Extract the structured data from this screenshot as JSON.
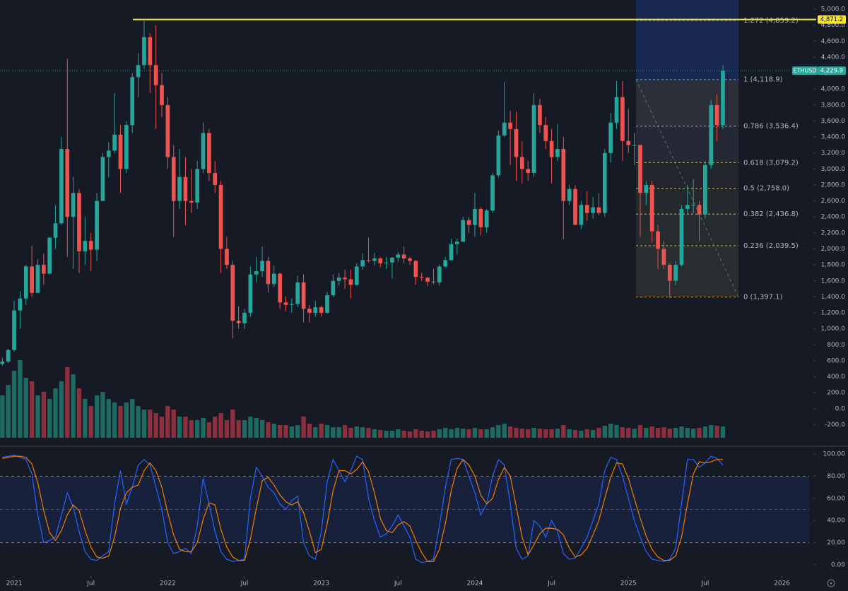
{
  "chart_data": {
    "type": "candlestick",
    "symbol": "ETHUSD",
    "last_price": {
      "value": 4229.9,
      "label": "4,229.9"
    },
    "up_color": "#26a69a",
    "down_color": "#ef5350",
    "xlim": [
      -0.4,
      136.6
    ],
    "xticks": [
      {
        "value": 2,
        "label": "2021"
      },
      {
        "value": 15,
        "label": "Jul"
      },
      {
        "value": 28,
        "label": "2022"
      },
      {
        "value": 41,
        "label": "Jul"
      },
      {
        "value": 54,
        "label": "2023"
      },
      {
        "value": 67,
        "label": "Jul"
      },
      {
        "value": 80,
        "label": "2024"
      },
      {
        "value": 93,
        "label": "Jul"
      },
      {
        "value": 106,
        "label": "2025"
      },
      {
        "value": 119,
        "label": "Jul"
      },
      {
        "value": 132,
        "label": "2026"
      }
    ],
    "ylim": [
      -470,
      5115
    ],
    "yticks": [
      {
        "value": 5000,
        "label": "5,000.0"
      },
      {
        "value": 4800,
        "label": "4,800.0"
      },
      {
        "value": 4600,
        "label": "4,600.0"
      },
      {
        "value": 4400,
        "label": "4,400.0"
      },
      {
        "value": 4200,
        "label": "4,200.0"
      },
      {
        "value": 4000,
        "label": "4,000.0"
      },
      {
        "value": 3800,
        "label": "3,800.0"
      },
      {
        "value": 3600,
        "label": "3,600.0"
      },
      {
        "value": 3400,
        "label": "3,400.0"
      },
      {
        "value": 3200,
        "label": "3,200.0"
      },
      {
        "value": 3000,
        "label": "3,000.0"
      },
      {
        "value": 2800,
        "label": "2,800.0"
      },
      {
        "value": 2600,
        "label": "2,600.0"
      },
      {
        "value": 2400,
        "label": "2,400.0"
      },
      {
        "value": 2200,
        "label": "2,200.0"
      },
      {
        "value": 2000,
        "label": "2,000.0"
      },
      {
        "value": 1800,
        "label": "1,800.0"
      },
      {
        "value": 1600,
        "label": "1,600.0"
      },
      {
        "value": 1400,
        "label": "1,400.0"
      },
      {
        "value": 1200,
        "label": "1,200.0"
      },
      {
        "value": 1000,
        "label": "1,000.0"
      },
      {
        "value": 800,
        "label": "800.0"
      },
      {
        "value": 600,
        "label": "600.0"
      },
      {
        "value": 400,
        "label": "400.0"
      },
      {
        "value": 200,
        "label": "200.0"
      },
      {
        "value": 0,
        "label": "0.0"
      },
      {
        "value": -200,
        "label": "-200.0"
      }
    ],
    "open": [
      560,
      590,
      735,
      1230,
      1380,
      1780,
      1450,
      1800,
      1690,
      2140,
      2320,
      3250,
      2400,
      2700,
      1970,
      2100,
      1990,
      2600,
      3150,
      3230,
      3430,
      3000,
      3550,
      4150,
      4300,
      4650,
      4300,
      4050,
      3800,
      3150,
      2600,
      2900,
      2600,
      2580,
      3000,
      3450,
      2950,
      2800,
      2000,
      1800,
      1100,
      1070,
      1200,
      1680,
      1720,
      1850,
      1560,
      1690,
      1330,
      1300,
      1310,
      1580,
      1250,
      1200,
      1270,
      1200,
      1420,
      1600,
      1640,
      1620,
      1550,
      1780,
      1860,
      1850,
      1880,
      1820,
      1830,
      1890,
      1930,
      1880,
      1850,
      1650,
      1640,
      1590,
      1580,
      1780,
      1860,
      2060,
      2090,
      2360,
      2300,
      2500,
      2270,
      2480,
      2920,
      3420,
      3580,
      3500,
      3150,
      3000,
      2950,
      3800,
      3550,
      3350,
      3150,
      3250,
      2600,
      2750,
      2300,
      2550,
      2450,
      2520,
      2450,
      3200,
      3580,
      3900,
      3350,
      3300,
      3300,
      2700,
      2800,
      2220,
      2000,
      1800,
      1600,
      1800,
      2500,
      2550,
      2550,
      2430,
      3050,
      3800,
      3550
    ],
    "high": [
      640,
      750,
      1350,
      1470,
      1800,
      2040,
      1870,
      1940,
      2150,
      2550,
      3400,
      4380,
      2900,
      2750,
      2400,
      2200,
      2700,
      3200,
      3330,
      3950,
      3550,
      3600,
      4200,
      4450,
      4870,
      4700,
      4800,
      4200,
      3900,
      3300,
      3250,
      3150,
      3000,
      3100,
      3580,
      3500,
      3100,
      2850,
      2150,
      1850,
      1280,
      1250,
      1780,
      1900,
      2030,
      1900,
      1790,
      1700,
      1400,
      1380,
      1660,
      1680,
      1300,
      1350,
      1290,
      1460,
      1680,
      1700,
      1740,
      1740,
      1820,
      1940,
      2140,
      1950,
      1900,
      1900,
      1900,
      1960,
      2030,
      1900,
      1860,
      1700,
      1650,
      1750,
      1800,
      1900,
      2130,
      2130,
      2400,
      2400,
      2700,
      2520,
      2500,
      2950,
      3480,
      4090,
      3730,
      3720,
      3350,
      3100,
      3950,
      3880,
      3650,
      3500,
      3560,
      3400,
      2800,
      2800,
      2600,
      2720,
      2650,
      2700,
      3250,
      3700,
      4100,
      4100,
      3750,
      3450,
      3300,
      2850,
      2850,
      2300,
      2100,
      1820,
      1850,
      2550,
      2800,
      2880,
      2600,
      3100,
      3860,
      3940,
      4300
    ],
    "low": [
      540,
      570,
      715,
      1000,
      1300,
      1400,
      1450,
      1550,
      1690,
      2000,
      2300,
      1900,
      1750,
      1700,
      1800,
      1720,
      1850,
      2600,
      2900,
      3200,
      2700,
      2950,
      3450,
      3900,
      4250,
      3950,
      3500,
      3650,
      3000,
      2150,
      2500,
      2300,
      2450,
      2500,
      2950,
      2850,
      2700,
      1700,
      1750,
      880,
      1000,
      1000,
      1150,
      1580,
      1650,
      1450,
      1520,
      1250,
      1220,
      1200,
      1270,
      1080,
      1080,
      1150,
      1150,
      1190,
      1400,
      1540,
      1500,
      1380,
      1540,
      1740,
      1830,
      1790,
      1770,
      1750,
      1630,
      1840,
      1820,
      1800,
      1550,
      1600,
      1530,
      1560,
      1540,
      1760,
      1850,
      1930,
      2090,
      2200,
      2150,
      2170,
      2200,
      2450,
      2900,
      3400,
      3050,
      2850,
      2820,
      2850,
      2900,
      3450,
      3250,
      2820,
      3100,
      2120,
      2550,
      2300,
      2250,
      2350,
      2380,
      2420,
      2400,
      3080,
      3500,
      3100,
      3200,
      3050,
      2150,
      2550,
      2080,
      1750,
      1750,
      1385,
      1550,
      1780,
      2450,
      2450,
      2100,
      2380,
      3000,
      3350,
      3500
    ],
    "close": [
      590,
      735,
      1230,
      1380,
      1780,
      1450,
      1800,
      1690,
      2140,
      2320,
      3250,
      2400,
      2700,
      1970,
      2100,
      1990,
      2600,
      3150,
      3230,
      3430,
      3000,
      3550,
      4150,
      4300,
      4650,
      4300,
      4050,
      3800,
      3150,
      2600,
      2900,
      2600,
      2580,
      3000,
      3450,
      2950,
      2800,
      2000,
      1800,
      1100,
      1070,
      1200,
      1680,
      1720,
      1850,
      1560,
      1690,
      1330,
      1300,
      1310,
      1580,
      1250,
      1200,
      1270,
      1200,
      1420,
      1600,
      1640,
      1620,
      1550,
      1780,
      1860,
      1850,
      1880,
      1820,
      1830,
      1890,
      1930,
      1880,
      1850,
      1650,
      1640,
      1590,
      1580,
      1780,
      1860,
      2060,
      2090,
      2360,
      2300,
      2500,
      2270,
      2480,
      2920,
      3420,
      3580,
      3500,
      3150,
      3000,
      2950,
      3800,
      3550,
      3350,
      3150,
      3250,
      2600,
      2750,
      2300,
      2550,
      2450,
      2520,
      2450,
      3200,
      3580,
      3900,
      3350,
      3300,
      3300,
      2700,
      2800,
      2220,
      2000,
      1800,
      1600,
      1800,
      2500,
      2550,
      2550,
      2430,
      3050,
      3800,
      3550,
      4229.9
    ],
    "volume": {
      "ylim": [
        0,
        120
      ],
      "up_color": "#1d6a62",
      "down_color": "#8c2f3f",
      "values": [
        60,
        75,
        95,
        110,
        85,
        80,
        60,
        65,
        55,
        70,
        80,
        100,
        90,
        70,
        55,
        45,
        60,
        65,
        55,
        50,
        45,
        50,
        55,
        45,
        40,
        40,
        35,
        30,
        45,
        40,
        30,
        30,
        25,
        25,
        28,
        22,
        30,
        35,
        25,
        40,
        25,
        25,
        30,
        28,
        25,
        22,
        20,
        18,
        18,
        16,
        18,
        30,
        20,
        15,
        20,
        18,
        15,
        15,
        18,
        14,
        16,
        15,
        14,
        12,
        11,
        10,
        10,
        12,
        10,
        9,
        12,
        10,
        9,
        10,
        12,
        14,
        12,
        14,
        13,
        12,
        14,
        12,
        12,
        15,
        18,
        20,
        16,
        14,
        13,
        12,
        14,
        13,
        12,
        12,
        13,
        18,
        12,
        11,
        10,
        12,
        11,
        14,
        17,
        20,
        18,
        15,
        14,
        13,
        18,
        14,
        16,
        14,
        15,
        13,
        14,
        16,
        14,
        13,
        14,
        16,
        18,
        17,
        16
      ]
    },
    "horizontal_line": {
      "value": 4871.2,
      "label": "4,871.2",
      "color": "#f5e13a"
    },
    "fibonacci": {
      "levels": [
        {
          "value": 4859.2,
          "label": "1.272 (4,859.2)",
          "color": "#7aa6e8"
        },
        {
          "value": 4118.9,
          "label": "1 (4,118.9)",
          "color": "#7aa6e8"
        },
        {
          "value": 3536.4,
          "label": "0.786 (3,536.4)",
          "color": "#d1d4dc"
        },
        {
          "value": 3079.2,
          "label": "0.618 (3,079.2)",
          "color": "#f3e58a"
        },
        {
          "value": 2758.0,
          "label": "0.5 (2,758.0)",
          "color": "#f3e58a"
        },
        {
          "value": 2436.8,
          "label": "0.382 (2,436.8)",
          "color": "#f3e58a"
        },
        {
          "value": 2039.5,
          "label": "0.236 (2,039.5)",
          "color": "#f3e58a"
        },
        {
          "value": 1397.1,
          "label": "0 (1,397.1)",
          "color": "#e8a33c"
        }
      ]
    },
    "stochastic": {
      "ylim": [
        -9.6,
        107
      ],
      "yticks": [
        {
          "value": 100,
          "label": "100.00"
        },
        {
          "value": 80,
          "label": "80.00"
        },
        {
          "value": 60,
          "label": "60.00"
        },
        {
          "value": 40,
          "label": "40.00"
        },
        {
          "value": 20,
          "label": "20.00"
        },
        {
          "value": 0,
          "label": "0.00"
        }
      ],
      "band": [
        20,
        80
      ],
      "midline": 50,
      "series": [
        {
          "color": "#2962ff",
          "values": [
            97,
            98,
            99,
            97,
            95,
            82,
            45,
            20,
            22,
            25,
            45,
            65,
            52,
            30,
            12,
            5,
            4,
            8,
            12,
            55,
            85,
            55,
            70,
            90,
            95,
            90,
            70,
            50,
            20,
            10,
            12,
            15,
            10,
            35,
            78,
            55,
            30,
            12,
            5,
            3,
            4,
            5,
            60,
            88,
            80,
            70,
            65,
            55,
            50,
            58,
            62,
            20,
            8,
            5,
            30,
            75,
            95,
            85,
            75,
            85,
            98,
            95,
            60,
            40,
            25,
            28,
            35,
            45,
            35,
            25,
            5,
            2,
            3,
            5,
            35,
            70,
            95,
            96,
            95,
            80,
            65,
            45,
            55,
            80,
            95,
            90,
            55,
            15,
            5,
            8,
            40,
            35,
            25,
            40,
            30,
            10,
            5,
            6,
            15,
            25,
            40,
            55,
            85,
            97,
            95,
            80,
            60,
            40,
            25,
            12,
            5,
            4,
            3,
            5,
            15,
            55,
            95,
            95,
            88,
            92,
            98,
            96,
            90
          ]
        },
        {
          "color": "#f57c00",
          "values": [
            96,
            97,
            98,
            98,
            97,
            91,
            74,
            49,
            29,
            22,
            31,
            45,
            54,
            49,
            31,
            16,
            7,
            6,
            8,
            25,
            51,
            65,
            70,
            72,
            85,
            92,
            85,
            70,
            47,
            27,
            14,
            12,
            12,
            20,
            41,
            56,
            54,
            32,
            16,
            7,
            4,
            4,
            23,
            51,
            76,
            79,
            72,
            63,
            57,
            54,
            57,
            47,
            30,
            11,
            14,
            37,
            67,
            85,
            85,
            82,
            86,
            93,
            84,
            65,
            42,
            31,
            29,
            36,
            39,
            35,
            22,
            11,
            3,
            3,
            14,
            37,
            67,
            87,
            95,
            90,
            80,
            63,
            55,
            60,
            77,
            88,
            80,
            53,
            25,
            9,
            18,
            28,
            33,
            33,
            32,
            27,
            15,
            7,
            9,
            15,
            27,
            40,
            60,
            79,
            92,
            91,
            78,
            60,
            42,
            26,
            14,
            7,
            4,
            4,
            8,
            25,
            55,
            82,
            93,
            92,
            93,
            95,
            95
          ]
        }
      ]
    }
  }
}
